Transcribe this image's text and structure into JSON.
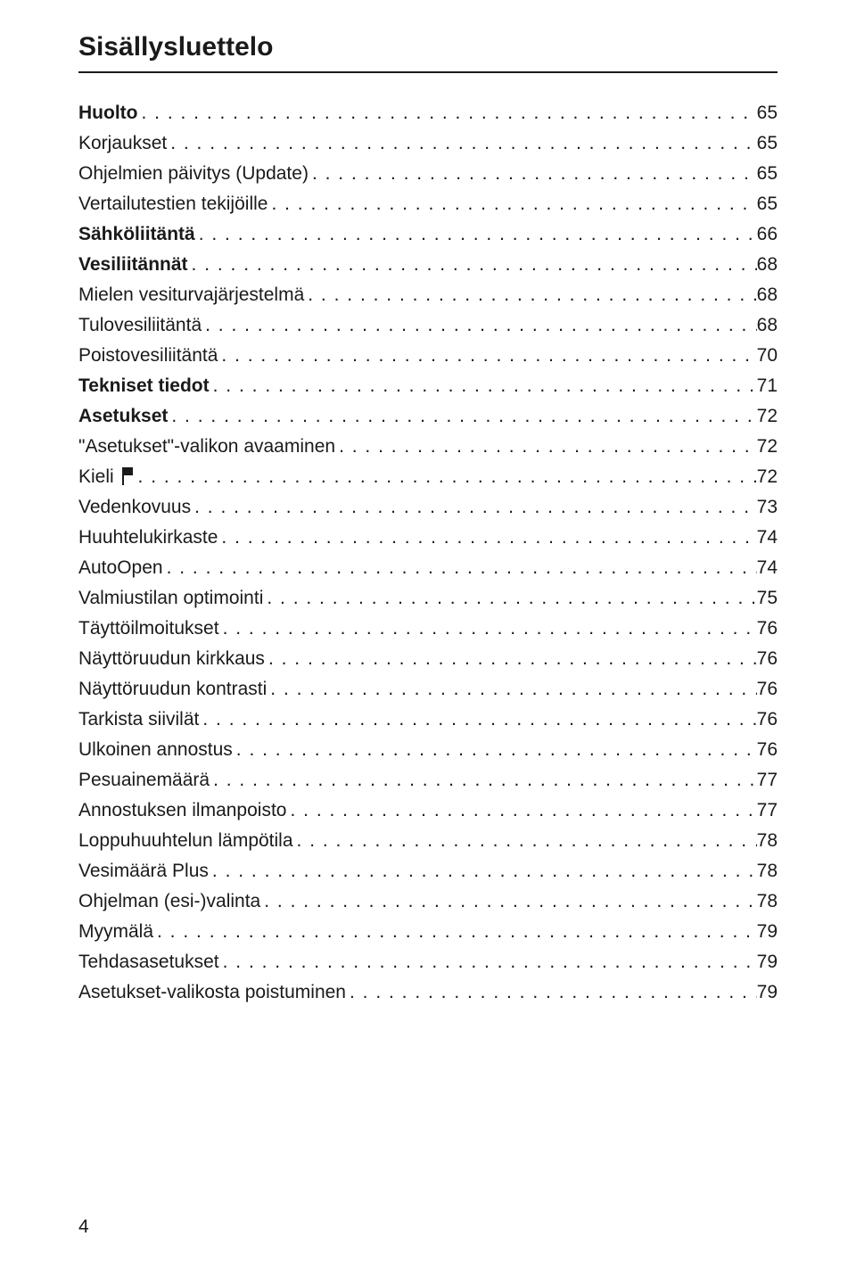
{
  "title": "Sisällysluettelo",
  "page_number": "4",
  "colors": {
    "text": "#1a1a1a",
    "background": "#ffffff",
    "rule": "#1a1a1a"
  },
  "toc": [
    {
      "label": "Huolto",
      "page": "65",
      "bold": true,
      "flag": false
    },
    {
      "label": "Korjaukset",
      "page": "65",
      "bold": false,
      "flag": false
    },
    {
      "label": "Ohjelmien päivitys (Update)",
      "page": "65",
      "bold": false,
      "flag": false
    },
    {
      "label": "Vertailutestien tekijöille",
      "page": "65",
      "bold": false,
      "flag": false
    },
    {
      "label": "Sähköliitäntä",
      "page": "66",
      "bold": true,
      "flag": false
    },
    {
      "label": "Vesiliitännät",
      "page": "68",
      "bold": true,
      "flag": false
    },
    {
      "label": "Mielen vesiturvajärjestelmä",
      "page": "68",
      "bold": false,
      "flag": false
    },
    {
      "label": "Tulovesiliitäntä",
      "page": "68",
      "bold": false,
      "flag": false
    },
    {
      "label": "Poistovesiliitäntä",
      "page": "70",
      "bold": false,
      "flag": false
    },
    {
      "label": "Tekniset tiedot",
      "page": "71",
      "bold": true,
      "flag": false
    },
    {
      "label": "Asetukset",
      "page": "72",
      "bold": true,
      "flag": false
    },
    {
      "label": "\"Asetukset\"-valikon avaaminen",
      "page": "72",
      "bold": false,
      "flag": false
    },
    {
      "label": "Kieli ",
      "page": "72",
      "bold": false,
      "flag": true
    },
    {
      "label": "Vedenkovuus",
      "page": "73",
      "bold": false,
      "flag": false
    },
    {
      "label": "Huuhtelukirkaste",
      "page": "74",
      "bold": false,
      "flag": false
    },
    {
      "label": "AutoOpen",
      "page": "74",
      "bold": false,
      "flag": false
    },
    {
      "label": "Valmiustilan optimointi",
      "page": "75",
      "bold": false,
      "flag": false
    },
    {
      "label": "Täyttöilmoitukset",
      "page": "76",
      "bold": false,
      "flag": false
    },
    {
      "label": "Näyttöruudun kirkkaus",
      "page": "76",
      "bold": false,
      "flag": false
    },
    {
      "label": "Näyttöruudun kontrasti",
      "page": "76",
      "bold": false,
      "flag": false
    },
    {
      "label": "Tarkista siivilät",
      "page": "76",
      "bold": false,
      "flag": false
    },
    {
      "label": "Ulkoinen annostus",
      "page": "76",
      "bold": false,
      "flag": false
    },
    {
      "label": "Pesuainemäärä",
      "page": "77",
      "bold": false,
      "flag": false
    },
    {
      "label": "Annostuksen ilmanpoisto",
      "page": "77",
      "bold": false,
      "flag": false
    },
    {
      "label": "Loppuhuuhtelun lämpötila",
      "page": "78",
      "bold": false,
      "flag": false
    },
    {
      "label": "Vesimäärä Plus",
      "page": "78",
      "bold": false,
      "flag": false
    },
    {
      "label": "Ohjelman (esi-)valinta",
      "page": "78",
      "bold": false,
      "flag": false
    },
    {
      "label": "Myymälä",
      "page": "79",
      "bold": false,
      "flag": false
    },
    {
      "label": "Tehdasasetukset",
      "page": "79",
      "bold": false,
      "flag": false
    },
    {
      "label": "Asetukset-valikosta poistuminen",
      "page": "79",
      "bold": false,
      "flag": false
    }
  ]
}
